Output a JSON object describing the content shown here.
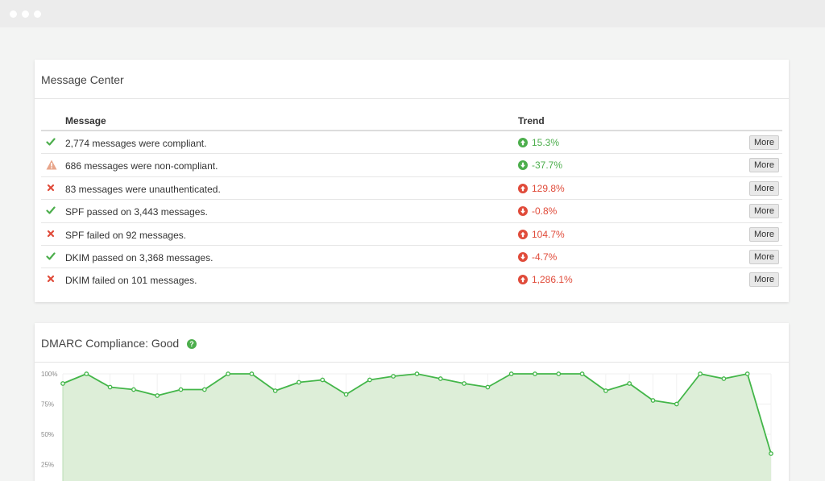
{
  "window": {
    "controls": [
      "close",
      "minimize",
      "maximize"
    ]
  },
  "colors": {
    "good": "#4cae4c",
    "bad": "#e04b3a",
    "warn": "#e8a58a",
    "fill": "#ddeed8",
    "line": "#43b649"
  },
  "message_center": {
    "title": "Message Center",
    "headers": {
      "message": "Message",
      "trend": "Trend"
    },
    "more_label": "More",
    "rows": [
      {
        "status": "check-icon",
        "text": "2,774 messages were compliant.",
        "trend": "15.3%",
        "direction": "up",
        "trend_color": "good"
      },
      {
        "status": "warning-icon",
        "text": "686 messages were non-compliant.",
        "trend": "-37.7%",
        "direction": "down",
        "trend_color": "good"
      },
      {
        "status": "x-icon",
        "text": "83 messages were unauthenticated.",
        "trend": "129.8%",
        "direction": "up",
        "trend_color": "bad"
      },
      {
        "status": "check-icon",
        "text": "SPF passed on 3,443 messages.",
        "trend": "-0.8%",
        "direction": "down",
        "trend_color": "bad"
      },
      {
        "status": "x-icon",
        "text": "SPF failed on 92 messages.",
        "trend": "104.7%",
        "direction": "up",
        "trend_color": "bad"
      },
      {
        "status": "check-icon",
        "text": "DKIM passed on 3,368 messages.",
        "trend": "-4.7%",
        "direction": "down",
        "trend_color": "bad"
      },
      {
        "status": "x-icon",
        "text": "DKIM failed on 101 messages.",
        "trend": "1,286.1%",
        "direction": "up",
        "trend_color": "bad"
      }
    ]
  },
  "dmarc": {
    "title": "DMARC Compliance: Good",
    "help_icon": "question-icon"
  },
  "chart_data": {
    "type": "area",
    "title": "DMARC Compliance: Good",
    "xlabel": "",
    "ylabel": "",
    "ylim": [
      0,
      100
    ],
    "y_ticks": [
      "100%",
      "75%",
      "50%",
      "25%"
    ],
    "y_tick_values": [
      100,
      75,
      50,
      25
    ],
    "grid": true,
    "values": [
      92,
      100,
      89,
      87,
      82,
      87,
      87,
      100,
      100,
      86,
      93,
      95,
      83,
      95,
      98,
      100,
      96,
      92,
      89,
      100,
      100,
      100,
      100,
      86,
      92,
      78,
      75,
      100,
      96,
      100,
      34
    ]
  }
}
